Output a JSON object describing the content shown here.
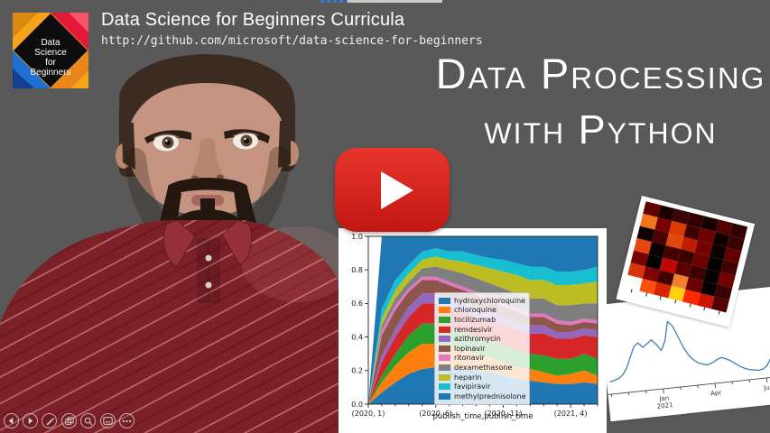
{
  "meta": {
    "background": "#595959"
  },
  "top_progress": {
    "blue_color": "#3a7bd5",
    "gray_color": "#c9c9c9"
  },
  "header": {
    "title": "Data Science for Beginners Curricula",
    "url": "http://github.com/microsoft/data-science-for-beginners"
  },
  "logo": {
    "text_lines": [
      "Data",
      "Science",
      "for",
      "Beginners"
    ],
    "colors": {
      "top_left": "#f5a31d",
      "top_left_accent": "#d88a10",
      "top_right": "#e31937",
      "top_right_accent": "#f4536a",
      "bottom_left": "#1f6fd0",
      "bottom_left_accent": "#143f8e",
      "bottom_right": "#e8861c",
      "bottom_right_accent": "#f5a31d",
      "diamond": "#0d0d0d",
      "text": "#ffffff"
    }
  },
  "hero": {
    "line1": "Data Processing",
    "line2": "with Python",
    "color": "#ffffff"
  },
  "play_button": {
    "name": "youtube-play",
    "color_top": "#e8352c",
    "color_bottom": "#c01712"
  },
  "player_controls": {
    "icons": [
      "previous-slide",
      "next-slide",
      "pen",
      "see-all-slides",
      "zoom",
      "captions",
      "more-options"
    ]
  },
  "chart_data": [
    {
      "id": "drug-mentions-area",
      "type": "area",
      "stacked": true,
      "normalized": true,
      "title": "",
      "xlabel": "publish_time,publish_time",
      "ylabel": "",
      "ylim": [
        0,
        1
      ],
      "y_ticks": [
        "0.0",
        "0.2",
        "0.4",
        "0.6",
        "0.8",
        "1.0"
      ],
      "x_tick_labels": [
        "(2020, 1)",
        "(2020, 6)",
        "(2020, 11)",
        "(2021, 4)"
      ],
      "x_tick_positions": [
        0,
        5,
        10,
        15
      ],
      "n_points": 18,
      "legend_position": "center-left-inside",
      "series": [
        {
          "name": "hydroxychloroquine",
          "color": "#1f77b4",
          "values": [
            0,
            0.07,
            0.13,
            0.18,
            0.21,
            0.22,
            0.22,
            0.21,
            0.2,
            0.19,
            0.17,
            0.15,
            0.14,
            0.13,
            0.12,
            0.12,
            0.13,
            0.12
          ]
        },
        {
          "name": "chloroquine",
          "color": "#ff7f0e",
          "values": [
            0,
            0.06,
            0.1,
            0.13,
            0.15,
            0.14,
            0.12,
            0.11,
            0.1,
            0.09,
            0.08,
            0.07,
            0.07,
            0.06,
            0.05,
            0.06,
            0.07,
            0.05
          ]
        },
        {
          "name": "tocilizumab",
          "color": "#2ca02c",
          "values": [
            0,
            0.04,
            0.07,
            0.1,
            0.12,
            0.12,
            0.11,
            0.11,
            0.1,
            0.1,
            0.1,
            0.1,
            0.09,
            0.1,
            0.1,
            0.09,
            0.1,
            0.1
          ]
        },
        {
          "name": "remdesivir",
          "color": "#d62728",
          "values": [
            0,
            0.08,
            0.1,
            0.11,
            0.12,
            0.12,
            0.12,
            0.12,
            0.12,
            0.12,
            0.12,
            0.12,
            0.12,
            0.13,
            0.12,
            0.12,
            0.11,
            0.13
          ]
        },
        {
          "name": "azithromycin",
          "color": "#9467bd",
          "values": [
            0,
            0.04,
            0.05,
            0.06,
            0.06,
            0.06,
            0.06,
            0.06,
            0.06,
            0.05,
            0.05,
            0.05,
            0.05,
            0.05,
            0.04,
            0.04,
            0.04,
            0.04
          ]
        },
        {
          "name": "lopinavir",
          "color": "#8c564b",
          "values": [
            0,
            0.12,
            0.11,
            0.09,
            0.08,
            0.08,
            0.08,
            0.07,
            0.07,
            0.07,
            0.06,
            0.06,
            0.05,
            0.05,
            0.05,
            0.04,
            0.04,
            0.04
          ]
        },
        {
          "name": "ritonavir",
          "color": "#e377c2",
          "values": [
            0,
            0.03,
            0.03,
            0.02,
            0.02,
            0.02,
            0.02,
            0.02,
            0.02,
            0.02,
            0.02,
            0.02,
            0.02,
            0.02,
            0.02,
            0.02,
            0.02,
            0.02
          ]
        },
        {
          "name": "dexamethasone",
          "color": "#7f7f7f",
          "values": [
            0,
            0.03,
            0.04,
            0.04,
            0.05,
            0.06,
            0.07,
            0.08,
            0.08,
            0.08,
            0.09,
            0.09,
            0.09,
            0.09,
            0.09,
            0.1,
            0.09,
            0.1
          ]
        },
        {
          "name": "heparin",
          "color": "#bcbd22",
          "values": [
            0,
            0.04,
            0.05,
            0.05,
            0.05,
            0.06,
            0.06,
            0.07,
            0.08,
            0.09,
            0.1,
            0.11,
            0.11,
            0.11,
            0.12,
            0.12,
            0.12,
            0.13
          ]
        },
        {
          "name": "favipiravir",
          "color": "#17becf",
          "values": [
            0,
            0.06,
            0.06,
            0.05,
            0.05,
            0.05,
            0.05,
            0.06,
            0.06,
            0.06,
            0.07,
            0.07,
            0.08,
            0.08,
            0.08,
            0.08,
            0.08,
            0.09
          ]
        },
        {
          "name": "methylprednisolone",
          "color": "#1f77b4",
          "values": [
            0,
            0.43,
            0.26,
            0.17,
            0.09,
            0.07,
            0.09,
            0.09,
            0.11,
            0.13,
            0.14,
            0.16,
            0.18,
            0.18,
            0.21,
            0.21,
            0.2,
            0.18
          ]
        }
      ]
    },
    {
      "id": "covid-cases-line",
      "type": "line",
      "color": "#3f7fbf",
      "x_ticks": [
        {
          "label": "Jan",
          "sublabel": "2021",
          "month_index": 3
        },
        {
          "label": "Apr",
          "sublabel": "",
          "month_index": 6
        },
        {
          "label": "Jul",
          "sublabel": "",
          "month_index": 9
        }
      ],
      "n_minor_month_ticks": 11,
      "values": [
        0.13,
        0.14,
        0.16,
        0.2,
        0.28,
        0.4,
        0.52,
        0.56,
        0.5,
        0.54,
        0.58,
        0.52,
        0.44,
        0.55,
        0.78,
        0.72,
        0.58,
        0.44,
        0.34,
        0.28,
        0.24,
        0.22,
        0.21,
        0.23,
        0.26,
        0.28,
        0.26,
        0.23,
        0.19,
        0.15,
        0.12,
        0.1,
        0.09,
        0.08,
        0.09,
        0.13,
        0.22,
        0.38,
        0.55
      ]
    },
    {
      "id": "drug-trials-heatmap",
      "type": "heatmap",
      "palette": "hot",
      "rows": [
        [
          "#600000",
          "#1c0000",
          "#3c0404",
          "#330000",
          "#180000",
          "#550000",
          "#330000"
        ],
        [
          "#f07818",
          "#7a0000",
          "#d83c00",
          "#400000",
          "#700000",
          "#120000",
          "#3c0000"
        ],
        [
          "#100000",
          "#4a0000",
          "#e04810",
          "#c01c00",
          "#740000",
          "#0e0000",
          "#620000"
        ],
        [
          "#e84410",
          "#0c0000",
          "#440000",
          "#3a0000",
          "#700000",
          "#060000",
          "#420000"
        ],
        [
          "#740000",
          "#020000",
          "#c00800",
          "#5c0000",
          "#3c0000",
          "#0a0000",
          "#6e0000"
        ],
        [
          "#d83410",
          "#820000",
          "#440000",
          "#f08030",
          "#6a0000",
          "#080000",
          "#380000"
        ],
        [
          "#ffffff",
          "#ff5010",
          "#d82400",
          "#ffd014",
          "#ff2800",
          "#cc1400",
          "#540000"
        ]
      ]
    }
  ]
}
